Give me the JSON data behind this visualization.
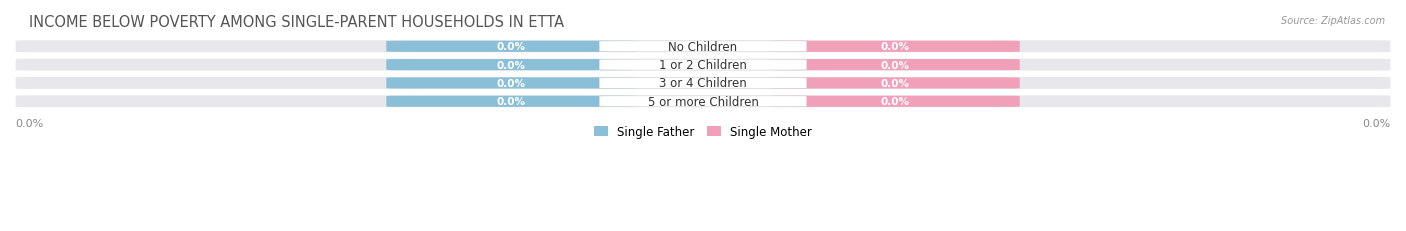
{
  "title": "INCOME BELOW POVERTY AMONG SINGLE-PARENT HOUSEHOLDS IN ETTA",
  "source": "Source: ZipAtlas.com",
  "categories": [
    "No Children",
    "1 or 2 Children",
    "3 or 4 Children",
    "5 or more Children"
  ],
  "single_father_values": [
    0.0,
    0.0,
    0.0,
    0.0
  ],
  "single_mother_values": [
    0.0,
    0.0,
    0.0,
    0.0
  ],
  "father_color": "#8bbfd8",
  "mother_color": "#f0a0b8",
  "row_bg_color": "#e8e8ec",
  "title_fontsize": 10.5,
  "label_fontsize": 7.5,
  "category_fontsize": 8.5,
  "axis_label_fontsize": 8,
  "background_color": "#ffffff",
  "legend_labels": [
    "Single Father",
    "Single Mother"
  ]
}
